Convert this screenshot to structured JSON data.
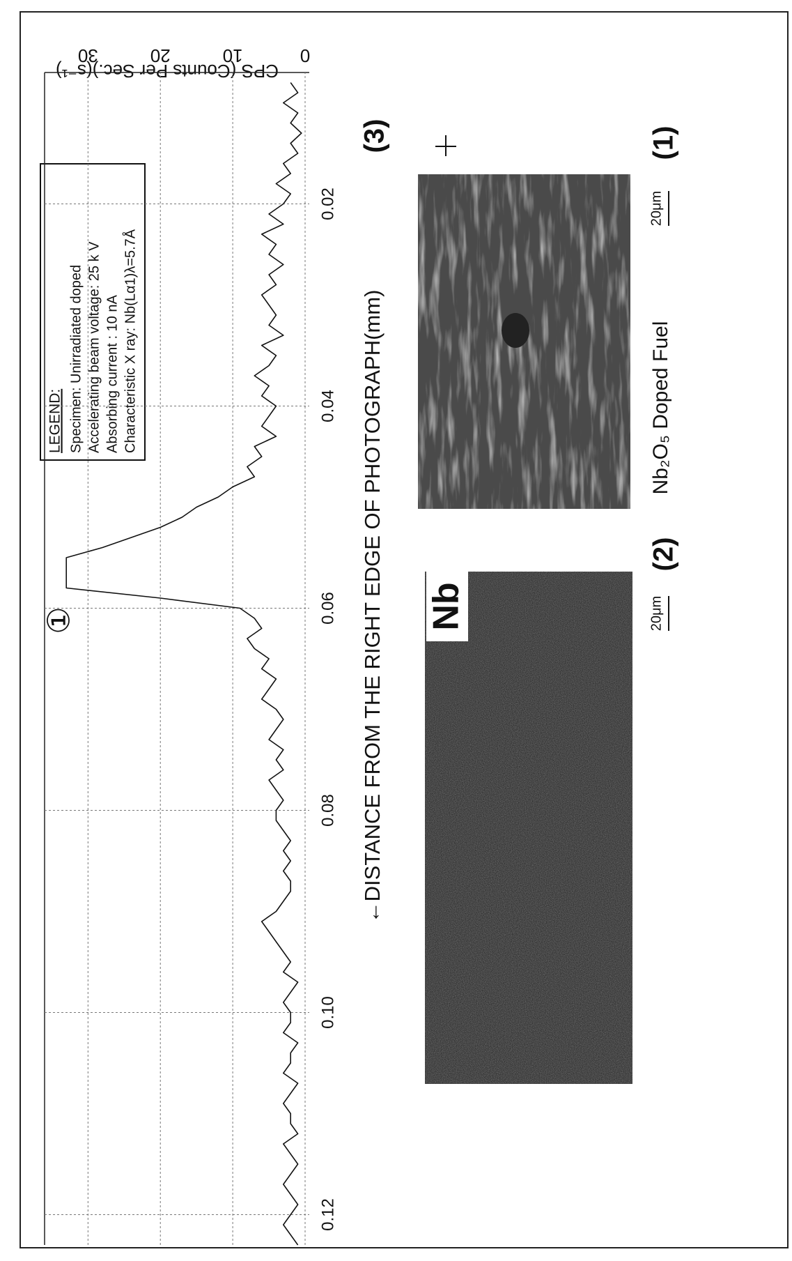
{
  "chart_data": {
    "type": "line",
    "panel_label": "(3)",
    "x_label": "←DISTANCE FROM THE RIGHT EDGE OF PHOTOGRAPH(mm)",
    "y_label": "CPS (Counts Per Sec.)(s⁻¹)",
    "annotation": "①",
    "notes": {
      "title": "LEGEND:",
      "lines": [
        "Specimen: Unirradiated        doped",
        "Accelerating beam voltage: 25 k V",
        "Absorbing  current : 10 nA",
        "Characteristic X ray: Nb(Lα1)λ=5.7Å"
      ]
    },
    "color": "#111111",
    "grid": true,
    "xlim": [
      0.123,
      0.007
    ],
    "ylim": [
      0,
      36
    ],
    "xticks": [
      0.02,
      0.04,
      0.06,
      0.08,
      {
        "value": 0.1,
        "label": "0.10"
      },
      0.12
    ],
    "yticks": [
      0,
      10,
      20,
      30
    ],
    "x": [
      0.008,
      0.009,
      0.01,
      0.011,
      0.012,
      0.013,
      0.014,
      0.015,
      0.016,
      0.017,
      0.018,
      0.019,
      0.02,
      0.021,
      0.022,
      0.023,
      0.024,
      0.025,
      0.026,
      0.027,
      0.028,
      0.029,
      0.03,
      0.031,
      0.032,
      0.033,
      0.034,
      0.035,
      0.036,
      0.037,
      0.038,
      0.039,
      0.04,
      0.041,
      0.042,
      0.043,
      0.044,
      0.045,
      0.046,
      0.047,
      0.048,
      0.049,
      0.05,
      0.051,
      0.052,
      0.053,
      0.054,
      0.055,
      0.056,
      0.057,
      0.058,
      0.059,
      0.06,
      0.061,
      0.062,
      0.063,
      0.064,
      0.065,
      0.066,
      0.067,
      0.068,
      0.069,
      0.07,
      0.071,
      0.072,
      0.073,
      0.074,
      0.075,
      0.076,
      0.077,
      0.078,
      0.079,
      0.08,
      0.081,
      0.082,
      0.083,
      0.084,
      0.085,
      0.086,
      0.087,
      0.088,
      0.089,
      0.09,
      0.091,
      0.092,
      0.093,
      0.094,
      0.095,
      0.096,
      0.097,
      0.098,
      0.099,
      0.1,
      0.101,
      0.102,
      0.103,
      0.104,
      0.105,
      0.106,
      0.107,
      0.108,
      0.109,
      0.11,
      0.111,
      0.112,
      0.113,
      0.114,
      0.115,
      0.116,
      0.117,
      0.118,
      0.119,
      0.12,
      0.121,
      0.122,
      0.123
    ],
    "values": [
      2,
      1,
      3,
      1,
      2,
      0.5,
      2,
      1,
      3,
      2,
      4,
      2,
      3,
      5,
      3,
      6,
      4,
      5,
      3,
      5,
      4,
      6,
      5,
      4,
      5,
      3,
      6,
      4,
      5,
      7,
      5,
      6,
      4,
      5,
      6,
      4,
      7,
      6,
      8,
      7,
      10,
      12,
      15,
      17,
      20,
      24,
      28,
      33,
      33,
      33,
      33,
      20,
      9,
      7,
      6,
      8,
      7,
      5,
      6,
      4,
      5,
      6,
      4,
      3,
      4,
      5,
      3,
      4,
      3,
      5,
      4,
      3,
      4,
      4,
      3,
      2,
      3,
      2,
      3,
      2,
      2,
      3,
      4,
      6,
      5,
      4,
      3,
      2,
      3,
      1,
      2,
      3,
      2,
      2,
      3,
      1,
      2,
      2,
      3,
      1,
      2,
      3,
      2,
      2,
      1,
      3,
      2,
      1,
      2,
      3,
      2,
      1,
      2,
      3,
      2,
      1
    ]
  },
  "figure": {
    "panels": [
      {
        "label": "(2)",
        "tag": "Nb",
        "scale_bar": "20μm"
      },
      {
        "label": "(1)",
        "caption": "Nb₂O₅ Doped Fuel",
        "scale_bar": "20μm"
      }
    ]
  }
}
